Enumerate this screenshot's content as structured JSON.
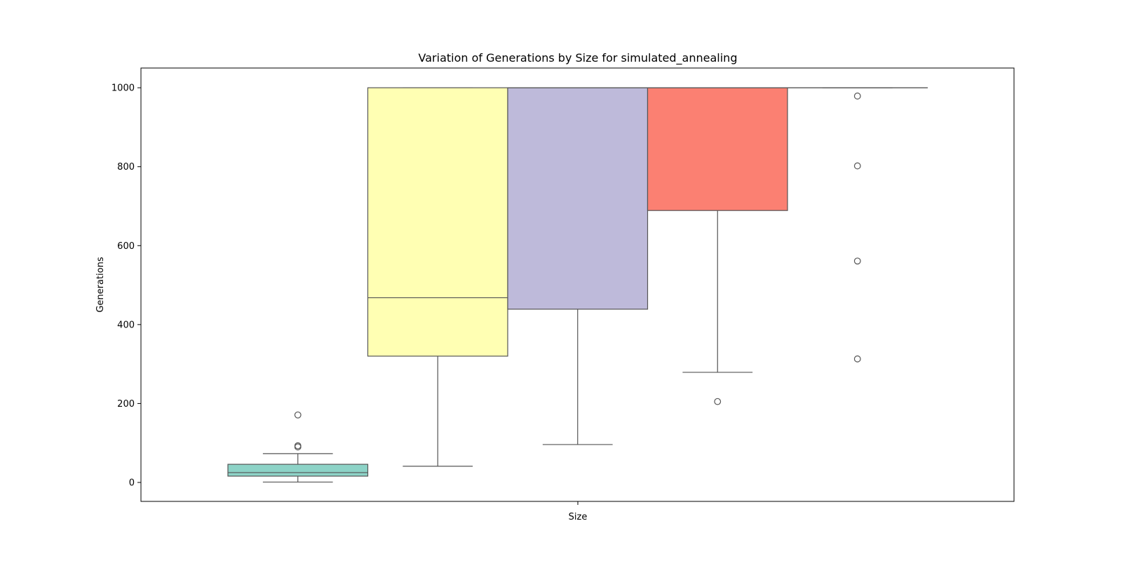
{
  "chart_data": {
    "type": "box",
    "title": "Variation of Generations by Size for simulated_annealing",
    "xlabel": "Size",
    "ylabel": "Generations",
    "ylim": [
      -48,
      1050
    ],
    "yticks": [
      0,
      200,
      400,
      600,
      800,
      1000
    ],
    "grid": false,
    "legend": "none",
    "boxes": [
      {
        "color": "#8dd3c7",
        "q1": 16,
        "median": 25,
        "q3": 46,
        "whisker_low": 1,
        "whisker_high": 73,
        "outliers": [
          90,
          93,
          171
        ]
      },
      {
        "color": "#ffffb3",
        "q1": 320,
        "median": 468,
        "q3": 1000,
        "whisker_low": 41,
        "whisker_high": 1000,
        "outliers": []
      },
      {
        "color": "#bebada",
        "q1": 439,
        "median": 1000,
        "q3": 1000,
        "whisker_low": 96,
        "whisker_high": 1000,
        "outliers": []
      },
      {
        "color": "#fb8072",
        "q1": 689,
        "median": 1000,
        "q3": 1000,
        "whisker_low": 279,
        "whisker_high": 1000,
        "outliers": [
          205
        ]
      },
      {
        "color": "#80b1d3",
        "q1": 1000,
        "median": 1000,
        "q3": 1000,
        "whisker_low": 1000,
        "whisker_high": 1000,
        "outliers": [
          313,
          561,
          802,
          979
        ]
      }
    ]
  }
}
